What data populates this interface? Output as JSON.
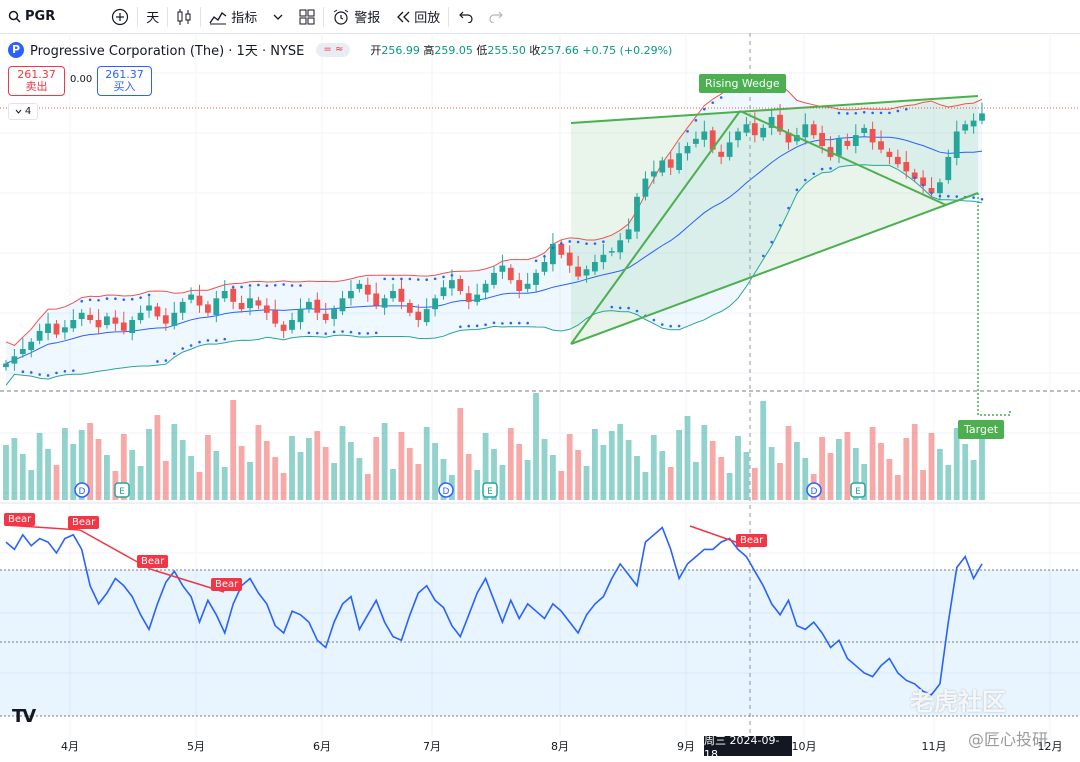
{
  "toolbar": {
    "symbol": "PGR",
    "interval": "天",
    "indicators": "指标",
    "alert": "警报",
    "replay": "回放"
  },
  "legend": {
    "name": "Progressive Corporation (The) · 1天 · NYSE",
    "logo_letter": "P",
    "ohlc": {
      "open_label": "开",
      "open": "256.99",
      "high_label": "高",
      "high": "259.05",
      "low_label": "低",
      "low": "255.50",
      "close_label": "收",
      "close": "257.66",
      "change": "+0.75 (+0.29%)"
    },
    "pill": "= ≈"
  },
  "price_boxes": {
    "sell_price": "261.37",
    "sell_label": "卖出",
    "spread": "0.00",
    "buy_price": "261.37",
    "buy_label": "买入"
  },
  "collapse_count": "4",
  "annotations": {
    "wedge_label": "Rising Wedge",
    "target_label": "Target",
    "bear_label": "Bear"
  },
  "event_markers": {
    "dividend": "D",
    "earnings": "E"
  },
  "time_axis": [
    "4月",
    "5月",
    "6月",
    "7月",
    "8月",
    "9月",
    "10月",
    "11月",
    "12月"
  ],
  "crosshair_date": "周三 2024-09-18",
  "tv_logo": "TV",
  "watermark": {
    "brand": "老虎社区",
    "handle": "@匠心投研"
  },
  "colors": {
    "up": "#26a69a",
    "down": "#ef5350",
    "basis": "#2962ff",
    "rsi": "#2962ff",
    "wedge": "#4caf50"
  },
  "chart_data": {
    "type": "candlestick",
    "series_description": "PGR daily candlesticks with Bollinger Bands, Parabolic SAR, volume and RSI",
    "price_range": [
      185,
      265
    ],
    "last_close": 257.66,
    "closes": [
      189,
      191,
      193,
      195,
      198,
      200,
      197,
      199,
      201,
      203,
      201,
      199,
      202,
      200,
      198,
      201,
      203,
      205,
      202,
      200,
      203,
      206,
      208,
      205,
      203,
      207,
      209,
      206,
      204,
      207,
      205,
      203,
      200,
      198,
      201,
      204,
      206,
      203,
      201,
      204,
      207,
      209,
      211,
      208,
      205,
      207,
      209,
      206,
      203,
      201,
      204,
      207,
      210,
      212,
      209,
      206,
      208,
      211,
      214,
      216,
      212,
      209,
      211,
      214,
      217,
      222,
      219,
      216,
      213,
      215,
      217,
      219,
      220,
      223,
      226,
      235,
      240,
      242,
      245,
      243,
      247,
      249,
      251,
      253,
      248,
      246,
      250,
      253,
      255,
      252,
      254,
      257,
      253,
      250,
      252,
      255,
      252,
      249,
      246,
      251,
      249,
      252,
      254,
      250,
      248,
      246,
      244,
      242,
      240,
      238,
      236,
      239,
      246,
      253,
      255,
      256,
      258
    ],
    "rsi_range": [
      25,
      80
    ],
    "rsi": [
      72,
      70,
      74,
      71,
      73,
      72,
      69,
      73,
      74,
      70,
      60,
      55,
      58,
      62,
      60,
      57,
      52,
      48,
      55,
      61,
      64,
      60,
      57,
      50,
      56,
      52,
      47,
      55,
      60,
      62,
      58,
      55,
      49,
      47,
      53,
      52,
      50,
      45,
      43,
      50,
      55,
      57,
      48,
      52,
      56,
      50,
      46,
      45,
      52,
      58,
      60,
      56,
      54,
      49,
      46,
      52,
      58,
      62,
      56,
      50,
      56,
      51,
      55,
      53,
      51,
      55,
      53,
      50,
      47,
      52,
      55,
      57,
      62,
      66,
      63,
      60,
      72,
      74,
      76,
      70,
      62,
      66,
      68,
      70,
      70,
      72,
      73,
      70,
      68,
      64,
      60,
      55,
      52,
      56,
      49,
      48,
      50,
      47,
      43,
      45,
      40,
      38,
      36,
      35,
      38,
      40,
      36,
      34,
      33,
      31,
      30,
      33,
      50,
      65,
      68,
      62,
      66
    ]
  }
}
